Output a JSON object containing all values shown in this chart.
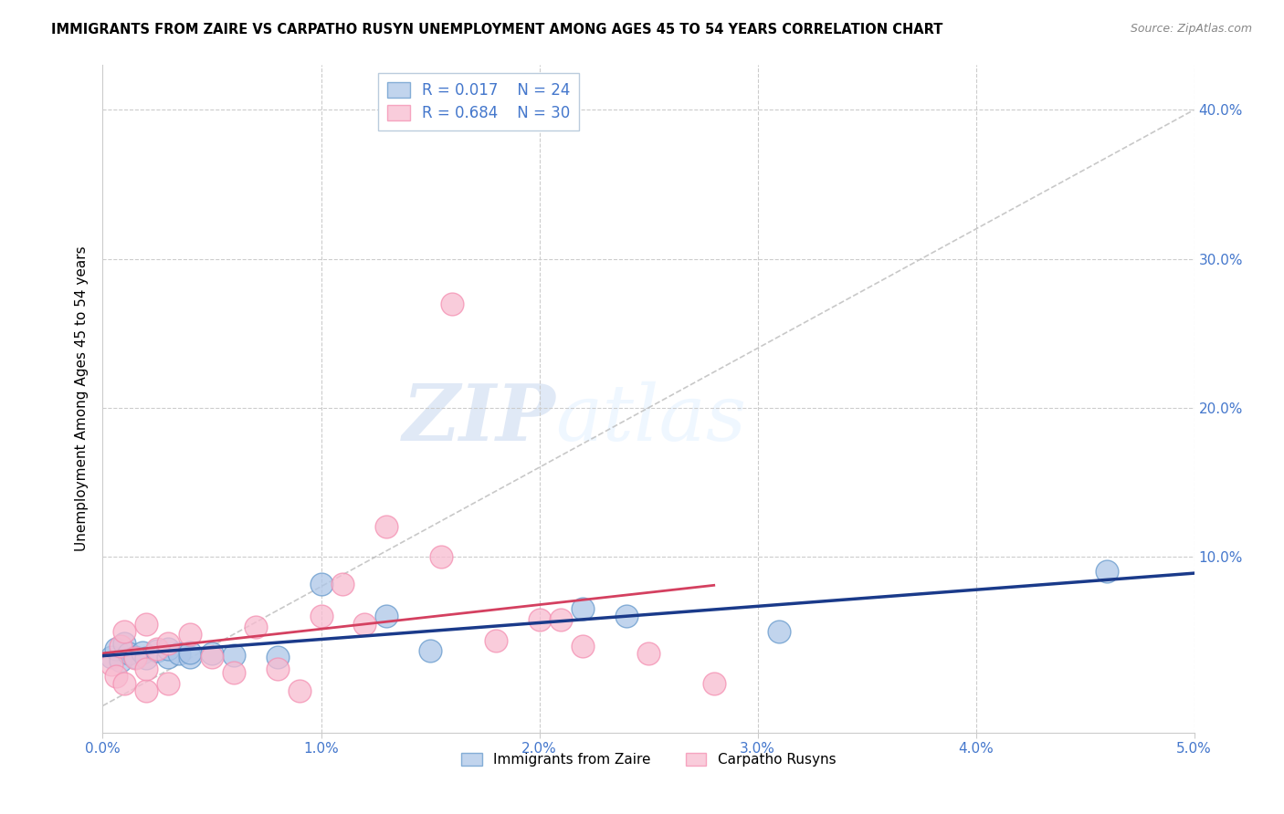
{
  "title": "IMMIGRANTS FROM ZAIRE VS CARPATHO RUSYN UNEMPLOYMENT AMONG AGES 45 TO 54 YEARS CORRELATION CHART",
  "source": "Source: ZipAtlas.com",
  "ylabel": "Unemployment Among Ages 45 to 54 years",
  "xlim": [
    0.0,
    0.05
  ],
  "ylim": [
    -0.018,
    0.43
  ],
  "yticks": [
    0.0,
    0.1,
    0.2,
    0.3,
    0.4
  ],
  "xticks": [
    0.0,
    0.01,
    0.02,
    0.03,
    0.04,
    0.05
  ],
  "xtick_labels": [
    "0.0%",
    "1.0%",
    "2.0%",
    "3.0%",
    "4.0%",
    "5.0%"
  ],
  "ytick_labels_right": [
    "",
    "10.0%",
    "20.0%",
    "30.0%",
    "40.0%"
  ],
  "blue_fill": "#adc6e8",
  "blue_edge": "#6699cc",
  "pink_fill": "#f8bbd0",
  "pink_edge": "#f48fb1",
  "line_blue_color": "#1a3a8a",
  "line_pink_color": "#d44060",
  "line_diag_color": "#bbbbbb",
  "tick_label_color": "#4477cc",
  "grid_color": "#cccccc",
  "legend_R_blue": "0.017",
  "legend_N_blue": "24",
  "legend_R_pink": "0.684",
  "legend_N_pink": "30",
  "watermark_zip": "ZIP",
  "watermark_atlas": "atlas",
  "zaire_x": [
    0.0004,
    0.0006,
    0.0008,
    0.001,
    0.0012,
    0.0015,
    0.0018,
    0.002,
    0.0025,
    0.003,
    0.003,
    0.0035,
    0.004,
    0.004,
    0.005,
    0.006,
    0.008,
    0.01,
    0.013,
    0.015,
    0.022,
    0.024,
    0.031,
    0.046
  ],
  "zaire_y": [
    0.033,
    0.038,
    0.03,
    0.042,
    0.035,
    0.033,
    0.036,
    0.032,
    0.037,
    0.033,
    0.038,
    0.035,
    0.033,
    0.036,
    0.035,
    0.034,
    0.033,
    0.082,
    0.06,
    0.037,
    0.065,
    0.06,
    0.05,
    0.09
  ],
  "rusyn_x": [
    0.0004,
    0.0006,
    0.0008,
    0.001,
    0.001,
    0.0015,
    0.002,
    0.002,
    0.002,
    0.0025,
    0.003,
    0.003,
    0.004,
    0.005,
    0.006,
    0.007,
    0.008,
    0.009,
    0.01,
    0.011,
    0.012,
    0.013,
    0.0155,
    0.016,
    0.018,
    0.02,
    0.021,
    0.022,
    0.025,
    0.028
  ],
  "rusyn_y": [
    0.028,
    0.02,
    0.04,
    0.015,
    0.05,
    0.032,
    0.01,
    0.025,
    0.055,
    0.038,
    0.015,
    0.042,
    0.048,
    0.033,
    0.022,
    0.053,
    0.025,
    0.01,
    0.06,
    0.082,
    0.055,
    0.12,
    0.1,
    0.27,
    0.044,
    0.058,
    0.058,
    0.04,
    0.035,
    0.015
  ]
}
